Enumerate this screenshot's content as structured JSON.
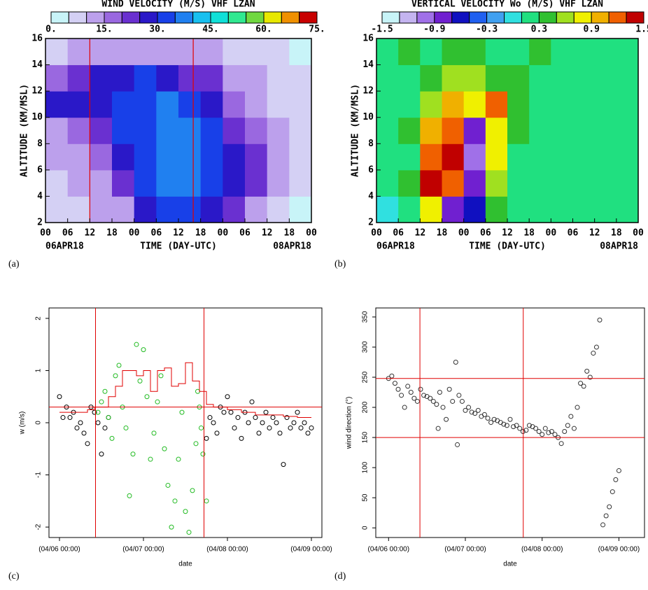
{
  "chart_data": [
    {
      "type": "heatmap",
      "title": "WIND VELOCITY (M/S) VHF LZAN",
      "panel_label": "(a)",
      "xlabel": "TIME (DAY-UTC)",
      "ylabel": "ALTITUDE (KM/MSL)",
      "colorbar": {
        "levels": [
          0,
          5,
          10,
          15,
          20,
          25,
          30,
          35,
          40,
          45,
          50,
          55,
          60,
          65,
          70,
          75
        ],
        "colors": [
          "#c8f4f8",
          "#d4d0f4",
          "#bca0ec",
          "#9a68e0",
          "#6a30d0",
          "#2a18c8",
          "#1840e8",
          "#2080f0",
          "#18c0f0",
          "#10e0d8",
          "#30e890",
          "#70d840",
          "#e8e800",
          "#f09000",
          "#c80000"
        ],
        "ticks": [
          {
            "value": 0,
            "label": "0."
          },
          {
            "value": 15,
            "label": "15."
          },
          {
            "value": 30,
            "label": "30."
          },
          {
            "value": 45,
            "label": "45."
          },
          {
            "value": 60,
            "label": "60."
          },
          {
            "value": 75,
            "label": "75."
          }
        ]
      },
      "xlim": [
        0,
        72
      ],
      "ylim": [
        2,
        16
      ],
      "xticks": [
        {
          "value": 0,
          "label": "00"
        },
        {
          "value": 6,
          "label": "06"
        },
        {
          "value": 12,
          "label": "12"
        },
        {
          "value": 18,
          "label": "18"
        },
        {
          "value": 24,
          "label": "00"
        },
        {
          "value": 30,
          "label": "06"
        },
        {
          "value": 36,
          "label": "12"
        },
        {
          "value": 42,
          "label": "18"
        },
        {
          "value": 48,
          "label": "00"
        },
        {
          "value": 54,
          "label": "06"
        },
        {
          "value": 60,
          "label": "12"
        },
        {
          "value": 66,
          "label": "18"
        },
        {
          "value": 72,
          "label": "00"
        }
      ],
      "yticks": [
        2,
        4,
        6,
        8,
        10,
        12,
        14,
        16
      ],
      "date_labels": [
        {
          "value": 0,
          "label": "06APR18"
        },
        {
          "value": 72,
          "label": "08APR18"
        }
      ],
      "vlines": [
        12,
        40
      ],
      "vline_color": "#e00000",
      "x": [
        3,
        9,
        15,
        21,
        27,
        33,
        39,
        45,
        51,
        57,
        63,
        69
      ],
      "y": [
        3,
        5,
        7,
        9,
        11,
        13,
        15
      ],
      "z": [
        [
          6,
          8,
          10,
          14,
          28,
          32,
          30,
          28,
          20,
          10,
          6,
          4
        ],
        [
          8,
          10,
          14,
          24,
          32,
          38,
          36,
          32,
          26,
          20,
          10,
          6
        ],
        [
          10,
          12,
          16,
          28,
          34,
          38,
          36,
          32,
          26,
          20,
          14,
          8
        ],
        [
          14,
          16,
          20,
          32,
          34,
          36,
          35,
          30,
          24,
          16,
          12,
          8
        ],
        [
          26,
          25,
          28,
          32,
          34,
          35,
          30,
          26,
          18,
          12,
          8,
          6
        ],
        [
          18,
          22,
          25,
          28,
          30,
          26,
          24,
          20,
          14,
          10,
          8,
          6
        ],
        [
          8,
          10,
          12,
          14,
          14,
          12,
          12,
          10,
          8,
          6,
          5,
          4
        ]
      ]
    },
    {
      "type": "heatmap",
      "title": "VERTICAL VELOCITY Wo (M/S) VHF LZAN",
      "panel_label": "(b)",
      "xlabel": "TIME (DAY-UTC)",
      "ylabel": "ALTITUDE (KM/MSL)",
      "colorbar": {
        "levels": [
          -1.5,
          -1.3,
          -1.1,
          -0.9,
          -0.7,
          -0.5,
          -0.3,
          -0.1,
          0.1,
          0.3,
          0.5,
          0.7,
          0.9,
          1.1,
          1.3,
          1.5
        ],
        "colors": [
          "#c8f4f8",
          "#c4b4f0",
          "#a070e8",
          "#7020d0",
          "#1010c0",
          "#2060f0",
          "#40a0f0",
          "#30e0e0",
          "#20e080",
          "#30c030",
          "#a0e020",
          "#f0f000",
          "#f0b000",
          "#f06000",
          "#c00000"
        ],
        "ticks": [
          -1.5,
          -0.9,
          -0.3,
          0.3,
          0.9,
          1.5
        ]
      },
      "xlim": [
        0,
        72
      ],
      "ylim": [
        2,
        16
      ],
      "xticks": [
        {
          "value": 0,
          "label": "00"
        },
        {
          "value": 6,
          "label": "06"
        },
        {
          "value": 12,
          "label": "12"
        },
        {
          "value": 18,
          "label": "18"
        },
        {
          "value": 24,
          "label": "00"
        },
        {
          "value": 30,
          "label": "06"
        },
        {
          "value": 36,
          "label": "12"
        },
        {
          "value": 42,
          "label": "18"
        },
        {
          "value": 48,
          "label": "00"
        },
        {
          "value": 54,
          "label": "06"
        },
        {
          "value": 60,
          "label": "12"
        },
        {
          "value": 66,
          "label": "18"
        },
        {
          "value": 72,
          "label": "00"
        }
      ],
      "yticks": [
        2,
        4,
        6,
        8,
        10,
        12,
        14,
        16
      ],
      "date_labels": [
        {
          "value": 0,
          "label": "06APR18"
        },
        {
          "value": 72,
          "label": "08APR18"
        }
      ],
      "x": [
        3,
        9,
        15,
        21,
        27,
        33,
        39,
        45,
        51,
        57,
        63,
        69
      ],
      "y": [
        3,
        5,
        7,
        9,
        11,
        13,
        15
      ],
      "z": [
        [
          0.0,
          0.2,
          0.8,
          -0.8,
          -0.6,
          0.4,
          0.2,
          0.1,
          0.1,
          0.1,
          0.1,
          0.1
        ],
        [
          0.1,
          0.3,
          1.3,
          1.2,
          -0.9,
          0.6,
          0.2,
          0.2,
          0.1,
          0.2,
          0.2,
          0.1
        ],
        [
          0.1,
          0.2,
          1.2,
          1.3,
          -1.1,
          0.7,
          0.2,
          0.1,
          0.2,
          0.2,
          0.1,
          0.1
        ],
        [
          0.2,
          0.3,
          0.9,
          1.1,
          -0.9,
          0.8,
          0.3,
          0.2,
          0.2,
          0.1,
          0.2,
          0.2
        ],
        [
          0.1,
          0.2,
          0.6,
          0.9,
          0.8,
          1.1,
          0.4,
          0.2,
          0.1,
          0.2,
          0.1,
          0.1
        ],
        [
          0.1,
          0.2,
          0.3,
          0.5,
          0.6,
          0.3,
          0.3,
          0.2,
          0.2,
          0.2,
          0.1,
          0.1
        ],
        [
          0.2,
          0.3,
          0.2,
          0.4,
          0.3,
          0.2,
          0.2,
          0.3,
          0.2,
          0.2,
          0.2,
          0.2
        ]
      ]
    },
    {
      "type": "scatter",
      "panel_label": "(c)",
      "xlabel": "date",
      "ylabel": "w (m/s)",
      "xlim": [
        -3,
        75
      ],
      "ylim": [
        -2.2,
        2.2
      ],
      "xticks": [
        {
          "value": 0,
          "label": "(04/06 00:00)"
        },
        {
          "value": 24,
          "label": "(04/07 00:00)"
        },
        {
          "value": 48,
          "label": "(04/08 00:00)"
        },
        {
          "value": 72,
          "label": "(04/09 00:00)"
        }
      ],
      "yticks": [
        -2,
        -1,
        0,
        1,
        2
      ],
      "vlines": [
        10.3,
        41.3
      ],
      "hlines": [
        0.3
      ],
      "line_color": "#e00000",
      "series": [
        {
          "color": "#000000",
          "marker": "circle",
          "x": [
            0,
            1,
            2,
            3,
            4,
            5,
            6,
            7,
            8,
            9,
            10,
            11,
            12,
            13,
            14,
            42,
            43,
            44,
            45,
            46,
            47,
            48,
            49,
            50,
            51,
            52,
            53,
            54,
            55,
            56,
            57,
            58,
            59,
            60,
            61,
            62,
            63,
            64,
            65,
            66,
            67,
            68,
            69,
            70,
            71,
            72
          ],
          "values": [
            0.5,
            0.1,
            0.3,
            0.1,
            0.2,
            -0.1,
            0.0,
            -0.2,
            -0.4,
            0.3,
            0.2,
            0.0,
            -0.6,
            -0.1,
            0.1,
            -0.3,
            0.1,
            0.0,
            -0.2,
            0.3,
            0.2,
            0.5,
            0.2,
            -0.1,
            0.1,
            -0.3,
            0.2,
            0.0,
            0.4,
            0.1,
            -0.2,
            0.0,
            0.2,
            -0.1,
            0.1,
            0.0,
            -0.2,
            -0.8,
            0.1,
            -0.1,
            0.0,
            0.2,
            -0.1,
            0.0,
            -0.2,
            -0.1
          ]
        },
        {
          "color": "#22bb22",
          "marker": "circle",
          "x": [
            11,
            12,
            13,
            14,
            15,
            16,
            17,
            18,
            19,
            20,
            21,
            22,
            23,
            24,
            25,
            26,
            27,
            28,
            29,
            30,
            31,
            32,
            33,
            34,
            35,
            36,
            37,
            38,
            39,
            39.5,
            40,
            40.5,
            41,
            42
          ],
          "values": [
            0.2,
            0.4,
            0.6,
            0.1,
            -0.3,
            0.9,
            1.1,
            0.3,
            -0.1,
            -1.4,
            -0.6,
            1.5,
            0.8,
            1.4,
            0.5,
            -0.7,
            -0.2,
            0.4,
            0.9,
            -0.5,
            -1.2,
            -2.0,
            -1.5,
            -0.7,
            0.2,
            -1.7,
            -2.1,
            -1.3,
            -0.4,
            0.6,
            0.3,
            -0.1,
            -0.6,
            -1.5
          ]
        },
        {
          "color": "#e00000",
          "marker": "step",
          "x": [
            0,
            4,
            8,
            10,
            12,
            14,
            16,
            18,
            20,
            22,
            24,
            26,
            28,
            30,
            32,
            34,
            36,
            38,
            40,
            42,
            44,
            48,
            52,
            56,
            60,
            64,
            68,
            72
          ],
          "values": [
            0.2,
            0.2,
            0.25,
            0.3,
            0.3,
            0.5,
            0.7,
            1.0,
            1.0,
            0.9,
            1.0,
            0.6,
            1.0,
            1.05,
            0.7,
            0.75,
            1.15,
            0.8,
            0.6,
            0.35,
            0.3,
            0.25,
            0.2,
            0.15,
            0.15,
            0.12,
            0.1,
            0.1
          ]
        }
      ]
    },
    {
      "type": "scatter",
      "panel_label": "(d)",
      "xlabel": "date",
      "ylabel": "wind direction (°)",
      "xlim": [
        -4,
        80
      ],
      "ylim": [
        -16,
        365
      ],
      "xticks": [
        {
          "value": 0,
          "label": "(04/06 00:00)"
        },
        {
          "value": 24,
          "label": "(04/07 00:00)"
        },
        {
          "value": 48,
          "label": "(04/08 00:00)"
        },
        {
          "value": 72,
          "label": "(04/09 00:00)"
        }
      ],
      "yticks": [
        0,
        50,
        100,
        150,
        200,
        250,
        300,
        350
      ],
      "vlines": [
        9.8,
        42.1
      ],
      "hlines": [
        248,
        150
      ],
      "line_color": "#e00000",
      "series": [
        {
          "color": "#333333",
          "marker": "circle",
          "x": [
            0,
            1,
            2,
            3,
            4,
            5,
            6,
            7,
            8,
            9,
            10,
            11,
            12,
            13,
            14,
            15,
            15.5,
            16,
            17,
            18,
            19,
            20,
            21,
            21.5,
            22,
            23,
            24,
            25,
            26,
            27,
            28,
            29,
            30,
            31,
            32,
            33,
            34,
            35,
            36,
            37,
            38,
            39,
            40,
            41,
            42,
            43,
            44,
            45,
            46,
            47,
            48,
            49,
            50,
            51,
            52,
            53,
            54,
            55,
            56,
            57,
            58,
            59,
            60,
            61,
            62,
            63,
            64,
            65,
            66,
            67,
            68,
            69,
            70,
            71,
            72
          ],
          "values": [
            248,
            252,
            240,
            230,
            220,
            200,
            235,
            225,
            215,
            210,
            230,
            220,
            218,
            215,
            210,
            205,
            165,
            225,
            200,
            180,
            230,
            210,
            275,
            138,
            220,
            210,
            195,
            200,
            192,
            190,
            195,
            185,
            188,
            182,
            175,
            180,
            178,
            175,
            172,
            170,
            180,
            168,
            170,
            165,
            160,
            162,
            170,
            168,
            165,
            160,
            155,
            165,
            158,
            160,
            155,
            150,
            140,
            160,
            170,
            185,
            165,
            200,
            240,
            235,
            260,
            250,
            290,
            300,
            345,
            5,
            20,
            35,
            60,
            80,
            95
          ]
        }
      ]
    }
  ]
}
